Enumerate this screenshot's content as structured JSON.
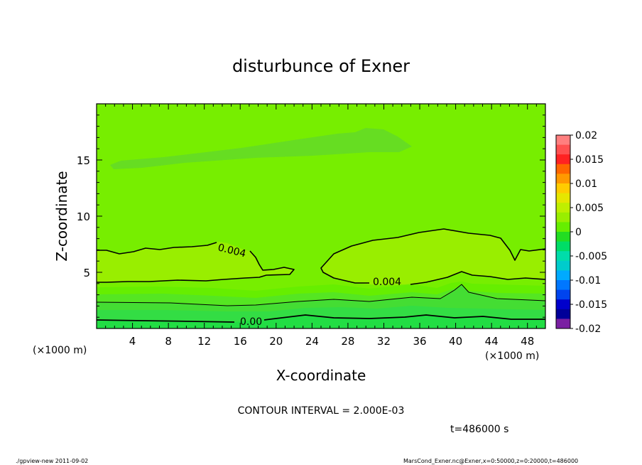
{
  "chart_data": {
    "type": "heatmap",
    "title": "disturbunce of Exner",
    "xlabel": "X-coordinate",
    "ylabel": "Z-coordinate",
    "x_unit": "(×1000 m)",
    "y_unit": "(×1000 m)",
    "xlim": [
      0,
      50
    ],
    "ylim": [
      0,
      20
    ],
    "x_ticks": [
      "4",
      "8",
      "12",
      "16",
      "20",
      "24",
      "28",
      "32",
      "36",
      "40",
      "44",
      "48"
    ],
    "y_ticks": [
      "5",
      "10",
      "15"
    ],
    "colorbar": {
      "labels": [
        "0.02",
        "0.015",
        "0.01",
        "0.005",
        "0",
        "-0.005",
        "-0.01",
        "-0.015",
        "-0.02"
      ],
      "levels": [
        0.02,
        0.015,
        0.01,
        0.005,
        0,
        -0.005,
        -0.01,
        -0.015,
        -0.02
      ],
      "colors": [
        "#ff7f7f",
        "#ff5050",
        "#ff2222",
        "#ff6600",
        "#ff9900",
        "#ffcc00",
        "#e6e600",
        "#bfef00",
        "#99ee00",
        "#66ee00",
        "#22dd22",
        "#00dd66",
        "#00ddaa",
        "#00cccc",
        "#00aaff",
        "#0077ff",
        "#0044ee",
        "#0000cc",
        "#000099",
        "#7a1fa2"
      ]
    },
    "contour_labels": [
      "0.004",
      "0.004",
      "0.00"
    ],
    "contour_interval": "CONTOUR INTERVAL = 2.000E-03",
    "time": "t=486000 s",
    "fields": {
      "background": "#77ee00",
      "upper_band": "#66dd22",
      "lobe_fill": "#99ee00",
      "lower_bands": [
        "#66ee00",
        "#55e622",
        "#44dd33",
        "#33dd44",
        "#22dd44"
      ]
    }
  },
  "footer": {
    "left": "./gpview-new  2011-09-02",
    "right": "MarsCond_Exner.nc@Exner,x=0:50000,z=0:20000,t=486000"
  }
}
